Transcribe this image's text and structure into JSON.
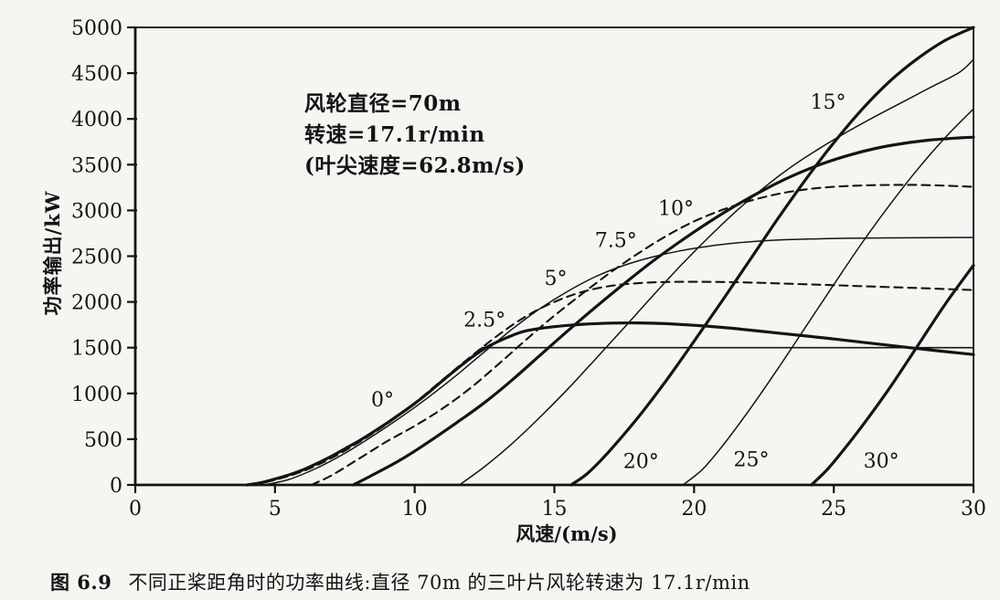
{
  "figure": {
    "caption_label": "图 6.9",
    "caption_text": "不同正桨距角时的功率曲线:直径 70m 的三叶片风轮转速为 17.1r/min"
  },
  "annotation": {
    "line1": "风轮直径=70m",
    "line2": "转速=17.1r/min",
    "line3": "(叶尖速度=62.8m/s)"
  },
  "chart_data": {
    "type": "line",
    "title": "",
    "xlabel": "风速/(m/s)",
    "ylabel": "功率输出/kW",
    "xlim": [
      0,
      30
    ],
    "ylim": [
      0,
      5000
    ],
    "xticks": [
      0,
      5,
      10,
      15,
      20,
      25,
      30
    ],
    "yticks": [
      0,
      500,
      1000,
      1500,
      2000,
      2500,
      3000,
      3500,
      4000,
      4500,
      5000
    ],
    "grid": false,
    "legend_position": "none",
    "line_color": "#141414",
    "series": [
      {
        "name": "pitch-0deg",
        "label": "0°",
        "style": "bold-solid",
        "label_anchor": [
          8.85,
          930
        ],
        "points": [
          [
            4.0,
            0
          ],
          [
            4.5,
            25
          ],
          [
            5,
            65
          ],
          [
            5.5,
            110
          ],
          [
            6,
            165
          ],
          [
            6.5,
            235
          ],
          [
            7,
            310
          ],
          [
            7.5,
            395
          ],
          [
            8,
            480
          ],
          [
            8.5,
            575
          ],
          [
            9,
            675
          ],
          [
            9.5,
            780
          ],
          [
            10,
            890
          ],
          [
            10.5,
            1010
          ],
          [
            11,
            1140
          ],
          [
            11.5,
            1265
          ],
          [
            12,
            1385
          ],
          [
            12.5,
            1490
          ],
          [
            13,
            1570
          ],
          [
            13.5,
            1635
          ],
          [
            14,
            1685
          ],
          [
            15,
            1730
          ],
          [
            16,
            1755
          ],
          [
            17,
            1768
          ],
          [
            18,
            1770
          ],
          [
            19,
            1762
          ],
          [
            20,
            1745
          ],
          [
            21,
            1722
          ],
          [
            22,
            1692
          ],
          [
            23,
            1660
          ],
          [
            24,
            1628
          ],
          [
            25,
            1595
          ],
          [
            26,
            1560
          ],
          [
            27,
            1525
          ],
          [
            28,
            1490
          ],
          [
            29,
            1457
          ],
          [
            30,
            1425
          ]
        ]
      },
      {
        "name": "pitch-2p5deg",
        "label": "2.5°",
        "style": "dashed",
        "label_anchor": [
          12.5,
          1800
        ],
        "points": [
          [
            4.2,
            0
          ],
          [
            5,
            55
          ],
          [
            6,
            150
          ],
          [
            7,
            290
          ],
          [
            8,
            465
          ],
          [
            9,
            665
          ],
          [
            10,
            895
          ],
          [
            11,
            1150
          ],
          [
            12,
            1400
          ],
          [
            13,
            1640
          ],
          [
            14,
            1845
          ],
          [
            15,
            2000
          ],
          [
            16,
            2110
          ],
          [
            17,
            2175
          ],
          [
            18,
            2205
          ],
          [
            19,
            2218
          ],
          [
            20,
            2220
          ],
          [
            21,
            2218
          ],
          [
            22,
            2212
          ],
          [
            23,
            2203
          ],
          [
            24,
            2193
          ],
          [
            25,
            2183
          ],
          [
            26,
            2172
          ],
          [
            27,
            2162
          ],
          [
            28,
            2152
          ],
          [
            29,
            2141
          ],
          [
            30,
            2130
          ]
        ]
      },
      {
        "name": "pitch-5deg",
        "label": "5°",
        "style": "thin-solid",
        "label_anchor": [
          15.05,
          2255
        ],
        "points": [
          [
            4.6,
            0
          ],
          [
            5.5,
            60
          ],
          [
            6.5,
            185
          ],
          [
            7.5,
            345
          ],
          [
            8.5,
            535
          ],
          [
            9.5,
            740
          ],
          [
            10.5,
            960
          ],
          [
            11.5,
            1200
          ],
          [
            12.5,
            1455
          ],
          [
            13.5,
            1705
          ],
          [
            14.5,
            1930
          ],
          [
            15.5,
            2120
          ],
          [
            16.5,
            2280
          ],
          [
            17.5,
            2400
          ],
          [
            18.5,
            2490
          ],
          [
            19.5,
            2558
          ],
          [
            20.5,
            2608
          ],
          [
            21.5,
            2645
          ],
          [
            22.5,
            2668
          ],
          [
            23.5,
            2682
          ],
          [
            24.5,
            2690
          ],
          [
            25.5,
            2696
          ],
          [
            27,
            2700
          ],
          [
            28.5,
            2703
          ],
          [
            30,
            2705
          ]
        ]
      },
      {
        "name": "pitch-7p5deg",
        "label": "7.5°",
        "style": "dashed",
        "label_anchor": [
          17.2,
          2670
        ],
        "points": [
          [
            6.3,
            0
          ],
          [
            7,
            100
          ],
          [
            8,
            285
          ],
          [
            9,
            475
          ],
          [
            10,
            645
          ],
          [
            11,
            835
          ],
          [
            12,
            1060
          ],
          [
            13,
            1320
          ],
          [
            14,
            1590
          ],
          [
            15,
            1850
          ],
          [
            16,
            2090
          ],
          [
            17,
            2320
          ],
          [
            18,
            2530
          ],
          [
            19,
            2720
          ],
          [
            20,
            2880
          ],
          [
            21,
            3005
          ],
          [
            22,
            3105
          ],
          [
            23,
            3180
          ],
          [
            24,
            3230
          ],
          [
            25,
            3258
          ],
          [
            26,
            3272
          ],
          [
            27,
            3278
          ],
          [
            28,
            3278
          ],
          [
            29,
            3270
          ],
          [
            30,
            3258
          ]
        ]
      },
      {
        "name": "pitch-10deg",
        "label": "10°",
        "style": "bold-solid",
        "label_anchor": [
          19.35,
          3020
        ],
        "points": [
          [
            7.8,
            0
          ],
          [
            8.5,
            110
          ],
          [
            9.5,
            275
          ],
          [
            10.5,
            470
          ],
          [
            11.5,
            680
          ],
          [
            12.5,
            900
          ],
          [
            13.5,
            1150
          ],
          [
            14.5,
            1420
          ],
          [
            15.5,
            1690
          ],
          [
            16.5,
            1950
          ],
          [
            17.5,
            2200
          ],
          [
            18.5,
            2440
          ],
          [
            19.5,
            2660
          ],
          [
            20.5,
            2865
          ],
          [
            21.5,
            3055
          ],
          [
            22.5,
            3225
          ],
          [
            23.5,
            3375
          ],
          [
            24.5,
            3500
          ],
          [
            25.5,
            3600
          ],
          [
            26.5,
            3678
          ],
          [
            27.5,
            3733
          ],
          [
            28.5,
            3770
          ],
          [
            29.5,
            3792
          ],
          [
            30,
            3800
          ]
        ]
      },
      {
        "name": "pitch-15deg",
        "label": "15°",
        "style": "thin-solid",
        "label_anchor": [
          24.8,
          4180
        ],
        "points": [
          [
            11.6,
            0
          ],
          [
            12.5,
            200
          ],
          [
            13.5,
            455
          ],
          [
            14.5,
            745
          ],
          [
            15.5,
            1055
          ],
          [
            16.5,
            1385
          ],
          [
            17.5,
            1720
          ],
          [
            18.5,
            2060
          ],
          [
            19.5,
            2390
          ],
          [
            20.5,
            2700
          ],
          [
            21.5,
            2990
          ],
          [
            22.5,
            3250
          ],
          [
            23.5,
            3480
          ],
          [
            24.5,
            3680
          ],
          [
            25.5,
            3862
          ],
          [
            26.5,
            4030
          ],
          [
            27.5,
            4190
          ],
          [
            28.5,
            4350
          ],
          [
            29.5,
            4510
          ],
          [
            30,
            4650
          ]
        ]
      },
      {
        "name": "pitch-20deg",
        "label": "20°",
        "style": "bold-solid",
        "label_anchor": [
          18.1,
          255
        ],
        "points": [
          [
            15.6,
            0
          ],
          [
            16.2,
            130
          ],
          [
            17,
            380
          ],
          [
            18,
            740
          ],
          [
            19,
            1140
          ],
          [
            20,
            1570
          ],
          [
            21,
            2010
          ],
          [
            22,
            2460
          ],
          [
            23,
            2910
          ],
          [
            24,
            3340
          ],
          [
            25,
            3740
          ],
          [
            26,
            4100
          ],
          [
            27,
            4410
          ],
          [
            28,
            4660
          ],
          [
            29,
            4860
          ],
          [
            30,
            5000
          ]
        ]
      },
      {
        "name": "pitch-25deg",
        "label": "25°",
        "style": "thin-solid",
        "label_anchor": [
          22.05,
          275
        ],
        "points": [
          [
            19.6,
            0
          ],
          [
            20.3,
            170
          ],
          [
            21,
            420
          ],
          [
            22,
            830
          ],
          [
            23,
            1270
          ],
          [
            24,
            1730
          ],
          [
            25,
            2190
          ],
          [
            26,
            2640
          ],
          [
            27,
            3060
          ],
          [
            28,
            3450
          ],
          [
            29,
            3800
          ],
          [
            30,
            4110
          ]
        ]
      },
      {
        "name": "pitch-30deg",
        "label": "30°",
        "style": "bold-solid",
        "label_anchor": [
          26.7,
          260
        ],
        "points": [
          [
            24.2,
            0
          ],
          [
            24.8,
            180
          ],
          [
            25.5,
            440
          ],
          [
            26.2,
            720
          ],
          [
            27,
            1060
          ],
          [
            28,
            1520
          ],
          [
            29,
            1980
          ],
          [
            30,
            2400
          ]
        ]
      },
      {
        "name": "constant-power-1500",
        "label": null,
        "style": "rated-line",
        "label_anchor": null,
        "points": [
          [
            12.4,
            1500
          ],
          [
            30,
            1500
          ]
        ]
      }
    ]
  }
}
